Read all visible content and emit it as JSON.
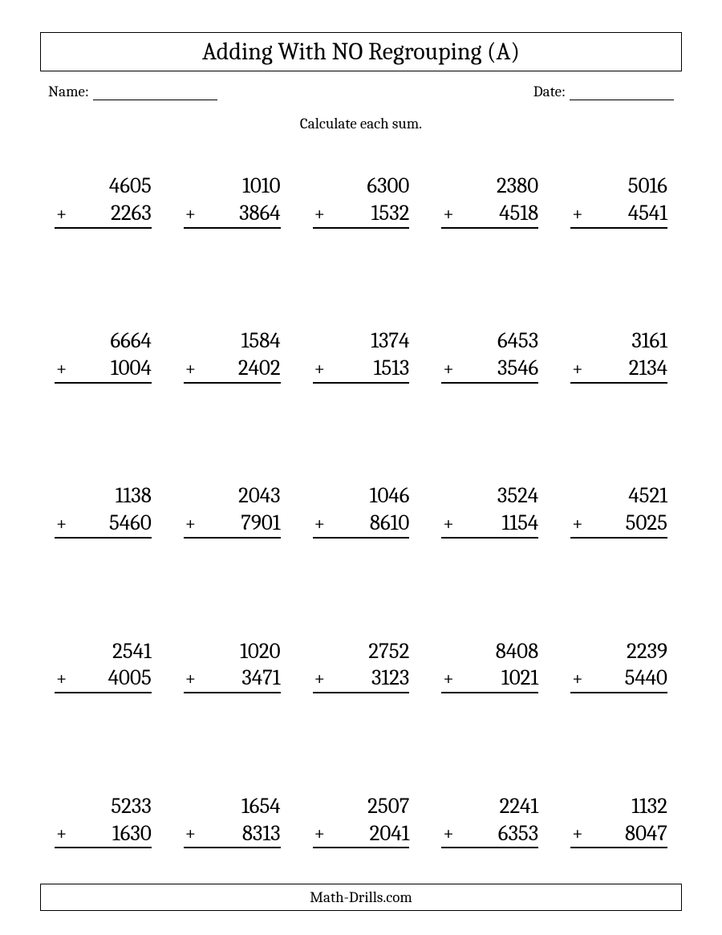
{
  "title": "Adding With NO Regrouping (A)",
  "name_label": "Name:",
  "date_label": "Date:",
  "instruction": "Calculate each sum.",
  "operator": "+",
  "footer": "Math-Drills.com",
  "colors": {
    "background": "#ffffff",
    "text": "#000000",
    "border": "#000000"
  },
  "layout": {
    "rows": 5,
    "cols": 5,
    "title_fontsize": 30,
    "body_fontsize": 19,
    "problem_fontsize": 27
  },
  "problems": [
    {
      "a": "4605",
      "b": "2263"
    },
    {
      "a": "1010",
      "b": "3864"
    },
    {
      "a": "6300",
      "b": "1532"
    },
    {
      "a": "2380",
      "b": "4518"
    },
    {
      "a": "5016",
      "b": "4541"
    },
    {
      "a": "6664",
      "b": "1004"
    },
    {
      "a": "1584",
      "b": "2402"
    },
    {
      "a": "1374",
      "b": "1513"
    },
    {
      "a": "6453",
      "b": "3546"
    },
    {
      "a": "3161",
      "b": "2134"
    },
    {
      "a": "1138",
      "b": "5460"
    },
    {
      "a": "2043",
      "b": "7901"
    },
    {
      "a": "1046",
      "b": "8610"
    },
    {
      "a": "3524",
      "b": "1154"
    },
    {
      "a": "4521",
      "b": "5025"
    },
    {
      "a": "2541",
      "b": "4005"
    },
    {
      "a": "1020",
      "b": "3471"
    },
    {
      "a": "2752",
      "b": "3123"
    },
    {
      "a": "8408",
      "b": "1021"
    },
    {
      "a": "2239",
      "b": "5440"
    },
    {
      "a": "5233",
      "b": "1630"
    },
    {
      "a": "1654",
      "b": "8313"
    },
    {
      "a": "2507",
      "b": "2041"
    },
    {
      "a": "2241",
      "b": "6353"
    },
    {
      "a": "1132",
      "b": "8047"
    }
  ]
}
